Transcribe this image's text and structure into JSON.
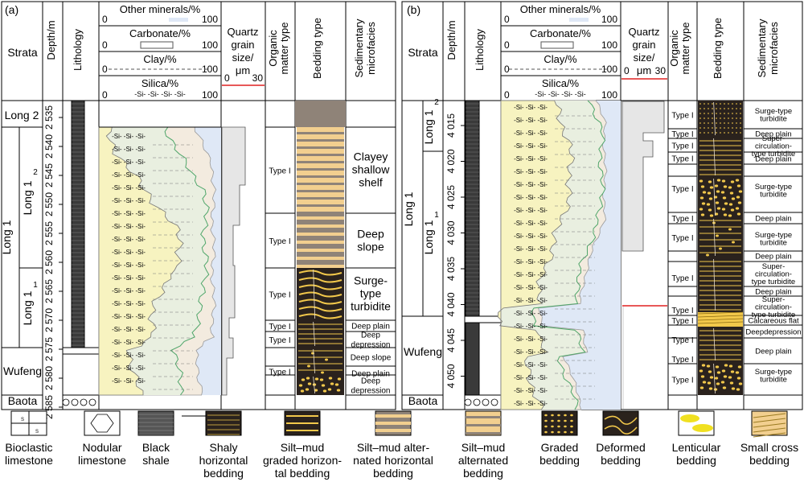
{
  "panels": [
    {
      "label": "(a)",
      "headers": {
        "strata": "Strata",
        "depth": "Depth/m",
        "lithology": "Lithology",
        "other": "Other minerals/%",
        "carbonate": "Carbonate/%",
        "clay": "Clay/%",
        "silica": "Silica/%",
        "scale_min": "0",
        "scale_max": "100",
        "quartz": [
          "Quartz",
          "grain",
          "size/",
          "μm"
        ],
        "quartz_min": "0",
        "quartz_max": "30",
        "organic": [
          "Organic",
          "matter type"
        ],
        "bedding": "Bedding type",
        "facies": [
          "Sedimentary",
          "microfacies"
        ]
      },
      "si_label": "-Si-",
      "depth_ticks": [
        "2 535",
        "2 545",
        "2 555",
        "2 565",
        "2 575",
        "2 585"
      ],
      "depth_ticks2": [
        "2 540",
        "2 550",
        "2 560",
        "2 570",
        "2 580"
      ],
      "strata": {
        "long2": "Long 2",
        "long1": "Long 1",
        "long12": "Long 1",
        "long12_sub": "2",
        "long11": "Long 1",
        "long11_sub": "1",
        "wufeng": "Wufeng",
        "baota": "Baota"
      },
      "organic_types": [
        "Type I",
        "Type I",
        "Type I",
        "Type I",
        "Type I",
        "Type I"
      ],
      "facies": [
        "Clayey shallow shelf",
        "Deep slope",
        "Surge-type turbidite",
        "Deep plain",
        "Deep depression",
        "Deep slope",
        "Deep plain",
        "Deep depression"
      ]
    },
    {
      "label": "(b)",
      "headers": {
        "strata": "Strata",
        "depth": "Depth/m",
        "lithology": "Lithology",
        "other": "Other minerals/%",
        "carbonate": "Carbonate/%",
        "clay": "Clay/%",
        "silica": "Silica/%",
        "scale_min": "0",
        "scale_max": "100",
        "quartz": [
          "Quartz",
          "grain",
          "size/",
          "μm"
        ],
        "quartz_min": "0",
        "quartz_max": "30",
        "organic": [
          "Organic",
          "matter type"
        ],
        "bedding": "Bedding type",
        "facies": [
          "Sedimentary",
          "microfacies"
        ]
      },
      "si_label": "-Si-",
      "depth_ticks": [
        "4 015",
        "4 020",
        "4 025",
        "4 030",
        "4 035",
        "4 040",
        "4 045",
        "4 050"
      ],
      "strata": {
        "long1": "Long 1",
        "long12": "Long 1",
        "long12_sub": "2",
        "long11": "Long 1",
        "long11_sub": "1",
        "wufeng": "Wufeng",
        "baota": "Baota"
      },
      "organic_types": [
        "Type I",
        "Type I",
        "Type I",
        "Type I",
        "Type I",
        "Type I",
        "Type I",
        "Type I",
        "Type I",
        "Type I",
        "Type I",
        "Type I",
        "Type I"
      ],
      "facies": [
        "Surge-type turbidite",
        "Deep plain",
        "Super-circulation-type turbidite",
        "Deep plain",
        "Surge-type turbidite",
        "Deep plain",
        "Surge-type turbidite",
        "Deep plain",
        "Super-circulation-type turbidite",
        "Deep plain",
        "Super-circulation-type turbidite",
        "Calcareous flat",
        "Deepdepression",
        "Deep plain",
        "Surge-type turbidite"
      ]
    }
  ],
  "legend": [
    {
      "name": "bioclastic-limestone",
      "lines": [
        "Bioclastic",
        "limestone"
      ]
    },
    {
      "name": "nodular-limestone",
      "lines": [
        "Nodular",
        "limestone"
      ]
    },
    {
      "name": "black-shale",
      "lines": [
        "Black",
        "shale"
      ]
    },
    {
      "name": "shaly-horizontal-bedding",
      "lines": [
        "Shaly",
        "horizontal",
        "bedding"
      ]
    },
    {
      "name": "silt-mud-graded-horizontal-bedding",
      "lines": [
        "Silt–mud",
        "graded horizon-",
        "tal bedding"
      ]
    },
    {
      "name": "silt-mud-alternated-horizontal-bedding",
      "lines": [
        "Silt–mud alter-",
        "nated horizontal",
        "bedding"
      ]
    },
    {
      "name": "silt-mud-alternated-bedding",
      "lines": [
        "Silt–mud",
        "alternated",
        "bedding"
      ]
    },
    {
      "name": "graded-bedding",
      "lines": [
        "Graded",
        "bedding"
      ]
    },
    {
      "name": "deformed-bedding",
      "lines": [
        "Deformed",
        "bedding"
      ]
    },
    {
      "name": "lenticular-bedding",
      "lines": [
        "Lenticular",
        "bedding"
      ]
    },
    {
      "name": "small-cross-bedding",
      "lines": [
        "Small cross",
        "bedding"
      ]
    }
  ],
  "colors": {
    "silica": "#f7f3c0",
    "clay": "#e9efe0",
    "carbonate": "#f3ebdf",
    "other": "#dfe8f6",
    "quartz": "#e6e6e6",
    "dark": "#2a221d",
    "yellow": "#f2c84b",
    "tan": "#f2cf8f",
    "redline": "#e02020"
  }
}
